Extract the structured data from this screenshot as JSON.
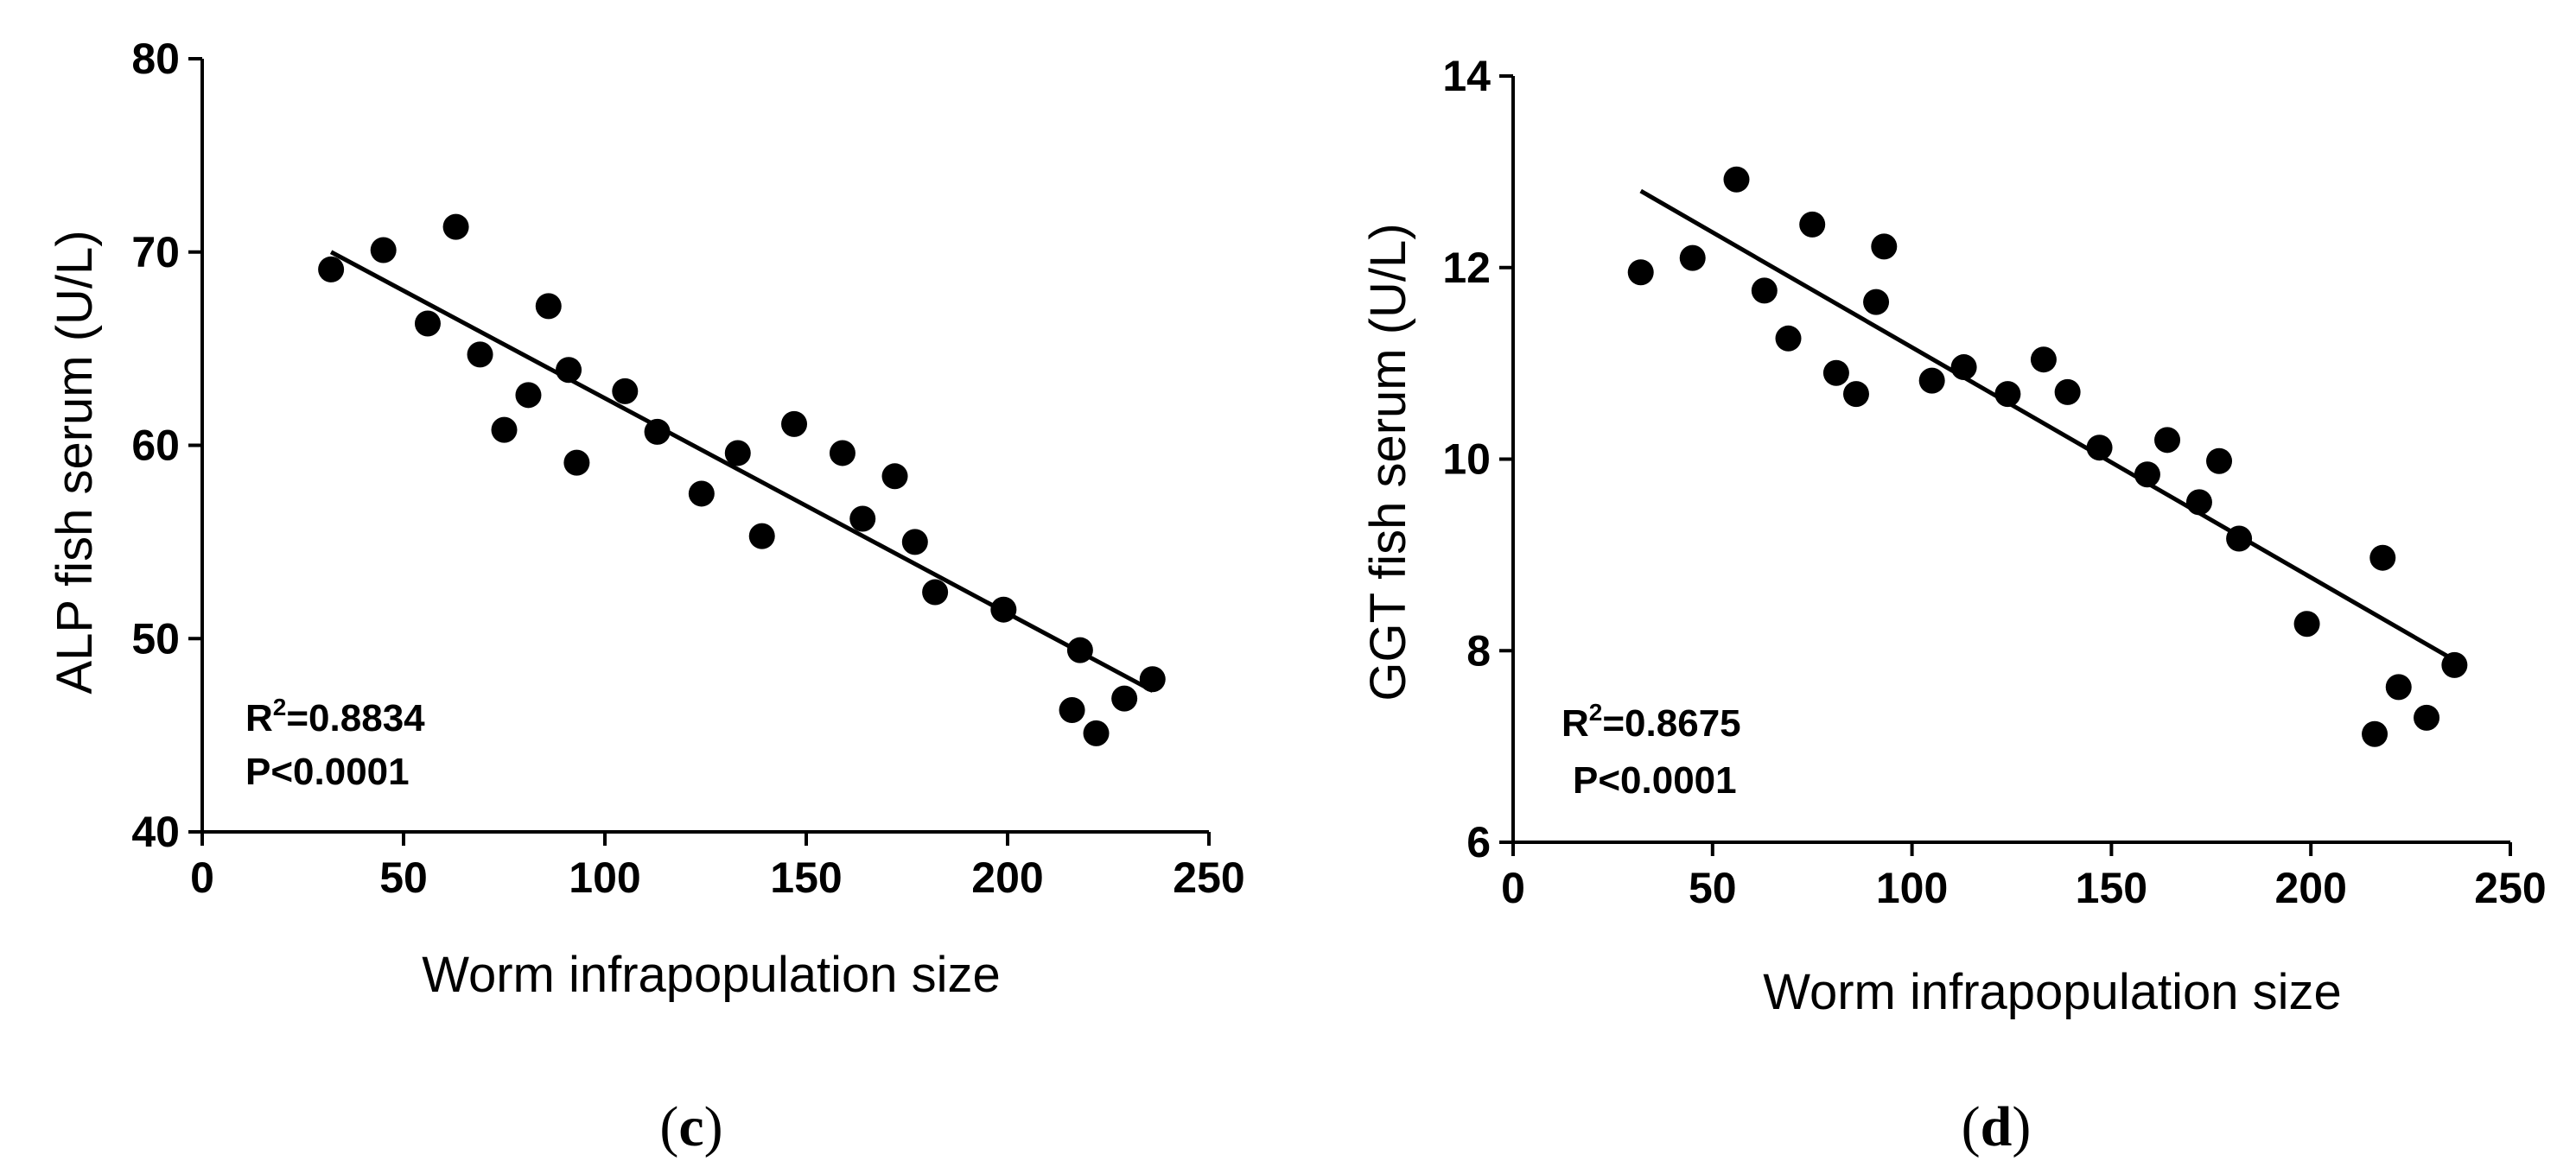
{
  "chart_data": [
    {
      "type": "scatter",
      "panel_label": "c",
      "xlabel": "Worm infrapopulation size",
      "ylabel": "ALP fish serum (U/L)",
      "xlim": [
        0,
        250
      ],
      "ylim": [
        40,
        80
      ],
      "xticks": [
        0,
        50,
        100,
        150,
        200,
        250
      ],
      "yticks": [
        40,
        50,
        60,
        70,
        80
      ],
      "points": [
        {
          "x": 32,
          "y": 69.1
        },
        {
          "x": 45,
          "y": 70.1
        },
        {
          "x": 56,
          "y": 66.3
        },
        {
          "x": 63,
          "y": 71.3
        },
        {
          "x": 69,
          "y": 64.7
        },
        {
          "x": 75,
          "y": 60.8
        },
        {
          "x": 81,
          "y": 62.6
        },
        {
          "x": 86,
          "y": 67.2
        },
        {
          "x": 91,
          "y": 63.9
        },
        {
          "x": 93,
          "y": 59.1
        },
        {
          "x": 105,
          "y": 62.8
        },
        {
          "x": 113,
          "y": 60.7
        },
        {
          "x": 124,
          "y": 57.5
        },
        {
          "x": 133,
          "y": 59.6
        },
        {
          "x": 139,
          "y": 55.3
        },
        {
          "x": 147,
          "y": 61.1
        },
        {
          "x": 159,
          "y": 59.6
        },
        {
          "x": 164,
          "y": 56.2
        },
        {
          "x": 172,
          "y": 58.4
        },
        {
          "x": 177,
          "y": 55.0
        },
        {
          "x": 182,
          "y": 52.4
        },
        {
          "x": 199,
          "y": 51.5
        },
        {
          "x": 216,
          "y": 46.3
        },
        {
          "x": 218,
          "y": 49.4
        },
        {
          "x": 222,
          "y": 45.1
        },
        {
          "x": 229,
          "y": 46.9
        },
        {
          "x": 236,
          "y": 47.9
        }
      ],
      "fit_line": {
        "x": [
          32,
          236
        ],
        "y": [
          70.0,
          47.3
        ]
      },
      "stats": {
        "r2_prefix": "R",
        "r2_sup": "2",
        "r2_value": "=0.8834",
        "p_text": "P<0.0001"
      }
    },
    {
      "type": "scatter",
      "panel_label": "d",
      "xlabel": "Worm infrapopulation size",
      "ylabel": "GGT fish serum (U/L)",
      "xlim": [
        0,
        250
      ],
      "ylim": [
        6,
        14
      ],
      "xticks": [
        0,
        50,
        100,
        150,
        200,
        250
      ],
      "yticks": [
        6,
        8,
        10,
        12,
        14
      ],
      "points": [
        {
          "x": 32,
          "y": 11.95
        },
        {
          "x": 45,
          "y": 12.1
        },
        {
          "x": 56,
          "y": 12.92
        },
        {
          "x": 63,
          "y": 11.76
        },
        {
          "x": 69,
          "y": 11.26
        },
        {
          "x": 75,
          "y": 12.45
        },
        {
          "x": 81,
          "y": 10.9
        },
        {
          "x": 86,
          "y": 10.68
        },
        {
          "x": 91,
          "y": 11.64
        },
        {
          "x": 93,
          "y": 12.22
        },
        {
          "x": 105,
          "y": 10.82
        },
        {
          "x": 113,
          "y": 10.96
        },
        {
          "x": 124,
          "y": 10.68
        },
        {
          "x": 133,
          "y": 11.04
        },
        {
          "x": 139,
          "y": 10.7
        },
        {
          "x": 147,
          "y": 10.12
        },
        {
          "x": 159,
          "y": 9.84
        },
        {
          "x": 164,
          "y": 10.2
        },
        {
          "x": 172,
          "y": 9.55
        },
        {
          "x": 177,
          "y": 9.98
        },
        {
          "x": 182,
          "y": 9.17
        },
        {
          "x": 199,
          "y": 8.28
        },
        {
          "x": 216,
          "y": 7.13
        },
        {
          "x": 218,
          "y": 8.97
        },
        {
          "x": 222,
          "y": 7.62
        },
        {
          "x": 229,
          "y": 7.3
        },
        {
          "x": 236,
          "y": 7.85
        }
      ],
      "fit_line": {
        "x": [
          32,
          236
        ],
        "y": [
          12.8,
          7.9
        ]
      },
      "stats": {
        "r2_prefix": "R",
        "r2_sup": "2",
        "r2_value": "=0.8675",
        "p_text": "P<0.0001"
      }
    }
  ]
}
